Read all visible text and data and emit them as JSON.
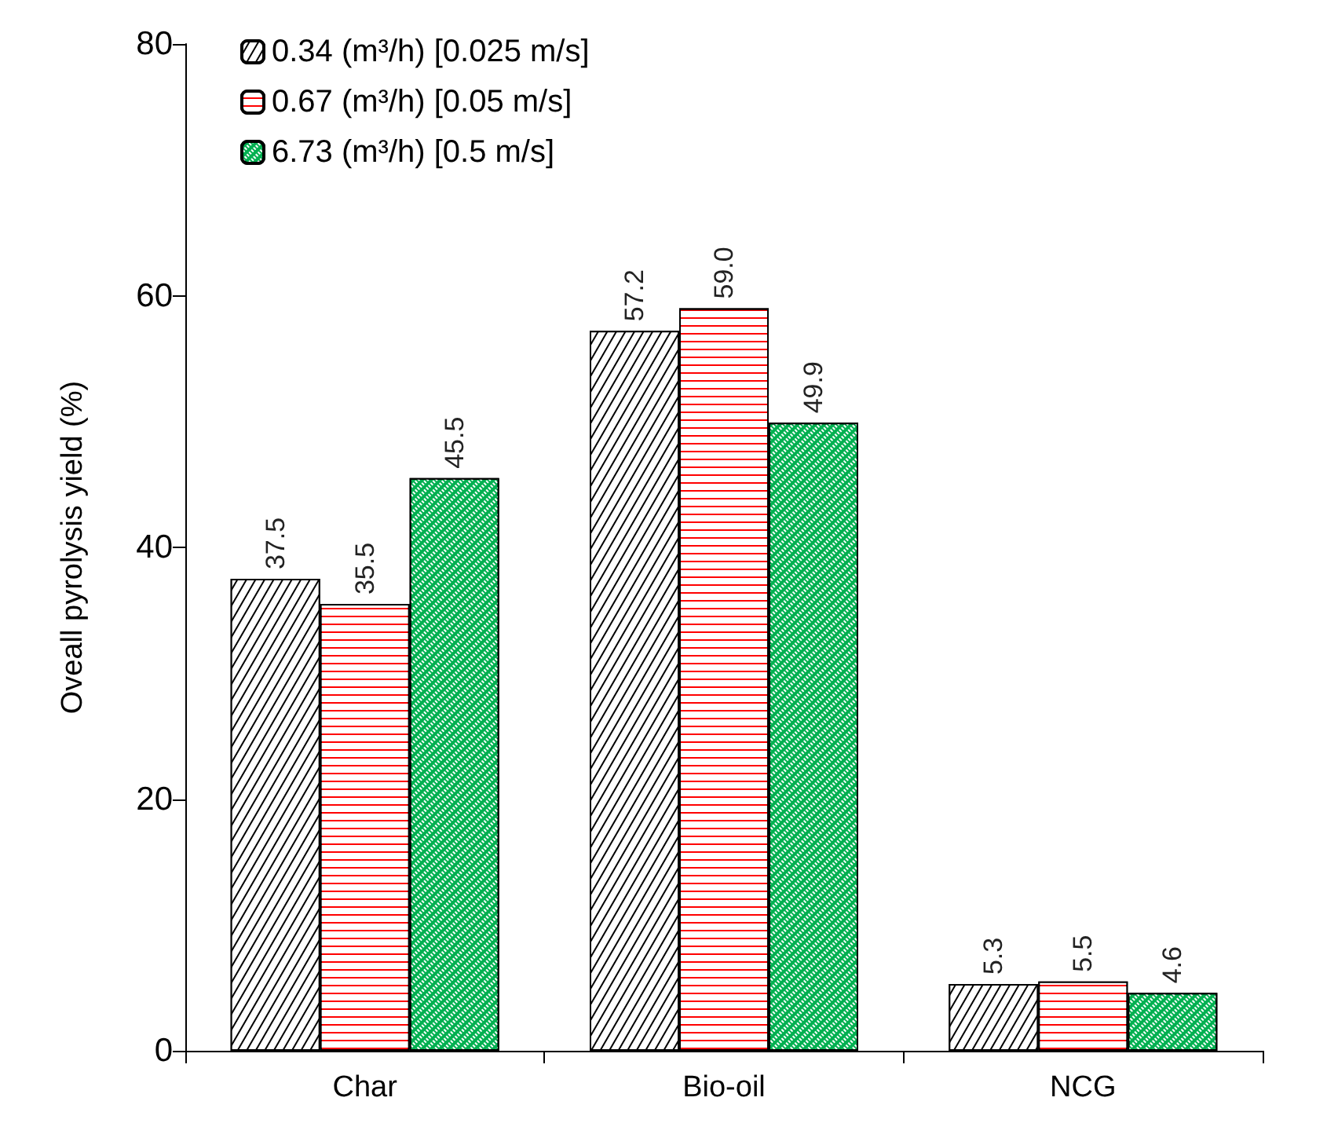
{
  "chart_data": {
    "type": "bar",
    "ylabel": "Oveall pyrolysis yield (%)",
    "categories": [
      "Char",
      "Bio-oil",
      "NCG"
    ],
    "series": [
      {
        "name": "0.34 (m³/h) [0.025 m/s]",
        "color": "#000000",
        "values": [
          37.5,
          57.2,
          5.3
        ],
        "value_labels": [
          "37.5",
          "57.2",
          "5.3"
        ]
      },
      {
        "name": "0.67 (m³/h) [0.05 m/s]",
        "color": "#ff0000",
        "values": [
          35.5,
          59.0,
          5.5
        ],
        "value_labels": [
          "35.5",
          "59.0",
          "5.5"
        ]
      },
      {
        "name": "6.73 (m³/h) [0.5 m/s]",
        "color": "#00b050",
        "values": [
          45.5,
          49.9,
          4.6
        ],
        "value_labels": [
          "45.5",
          "49.9",
          "4.6"
        ]
      }
    ],
    "ylim": [
      0,
      80
    ],
    "yticks": [
      0,
      20,
      40,
      60,
      80
    ],
    "grid": false,
    "legend": "top left"
  }
}
